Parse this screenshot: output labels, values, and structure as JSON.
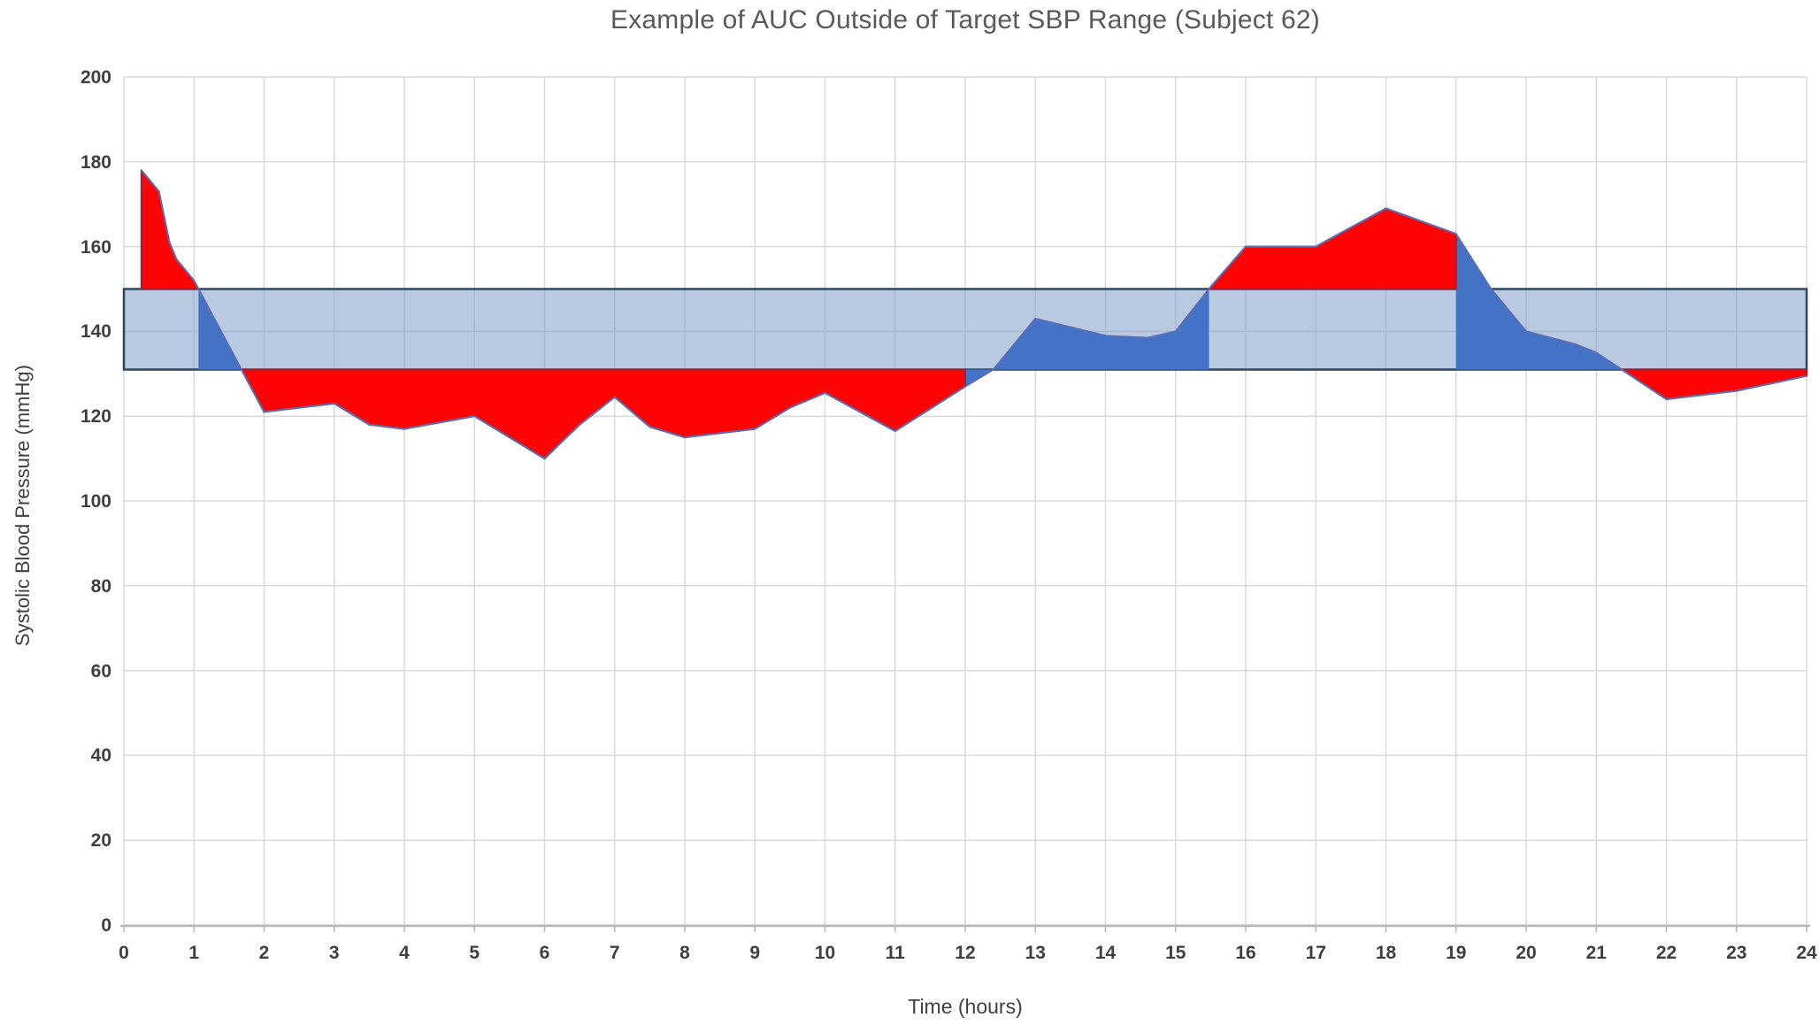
{
  "chart_data": {
    "type": "area",
    "title": "Example of AUC Outside of Target SBP Range (Subject 62)",
    "xlabel": "Time (hours)",
    "ylabel": "Systolic Blood Pressure (mmHg)",
    "xlim": [
      0,
      24
    ],
    "ylim": [
      0,
      200
    ],
    "x_ticks": [
      0,
      1,
      2,
      3,
      4,
      5,
      6,
      7,
      8,
      9,
      10,
      11,
      12,
      13,
      14,
      15,
      16,
      17,
      18,
      19,
      20,
      21,
      22,
      23,
      24
    ],
    "y_ticks": [
      0,
      20,
      40,
      60,
      80,
      100,
      120,
      140,
      160,
      180,
      200
    ],
    "grid": true,
    "legend": "none",
    "target_range": {
      "name": "Target SBP Range",
      "lower": 131,
      "upper": 150
    },
    "series": [
      {
        "name": "Systolic Blood Pressure",
        "points": [
          [
            0.25,
            178
          ],
          [
            0.5,
            173
          ],
          [
            0.65,
            161
          ],
          [
            0.75,
            157
          ],
          [
            1,
            152
          ],
          [
            2,
            121
          ],
          [
            2.5,
            122
          ],
          [
            3,
            123
          ],
          [
            3.5,
            118
          ],
          [
            4,
            117
          ],
          [
            4.5,
            118.5
          ],
          [
            5,
            120
          ],
          [
            6,
            110
          ],
          [
            6.5,
            118
          ],
          [
            7,
            124.5
          ],
          [
            7.5,
            117.5
          ],
          [
            8,
            115
          ],
          [
            9,
            117
          ],
          [
            9.5,
            122
          ],
          [
            10,
            125.5
          ],
          [
            11,
            116.5
          ],
          [
            12,
            127
          ],
          [
            12.4,
            131
          ],
          [
            13,
            143
          ],
          [
            14,
            139
          ],
          [
            14.6,
            138.5
          ],
          [
            15,
            140
          ],
          [
            15.5,
            150.5
          ],
          [
            16,
            160
          ],
          [
            17,
            160
          ],
          [
            18,
            169
          ],
          [
            19,
            163
          ],
          [
            19.5,
            150
          ],
          [
            20,
            140
          ],
          [
            20.7,
            137
          ],
          [
            21,
            135
          ],
          [
            22,
            124
          ],
          [
            23,
            126
          ],
          [
            24,
            129.5
          ]
        ]
      }
    ],
    "colors": {
      "outside_range_fill": "#fd0303",
      "outside_range_border": "#9c2036",
      "inside_range_fill": "#4472c4",
      "series_line": "#5a6eb5",
      "band_fill": "rgba(127,156,201,0.55)",
      "band_border": "#2e4560",
      "gridline": "#d9d9d9",
      "axis_line": "#b7b7b7",
      "tick_text": "#3f3f3f",
      "title_text": "#595959"
    }
  }
}
